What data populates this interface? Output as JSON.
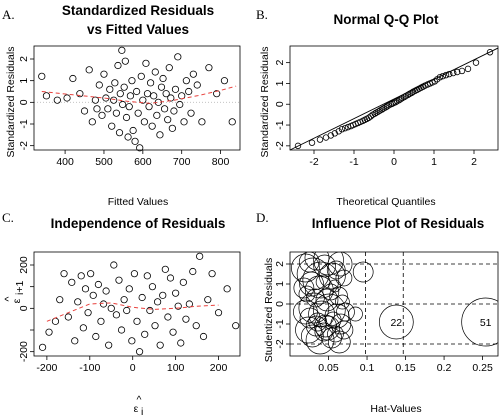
{
  "chart_data": [
    {
      "panel_label": "A.",
      "type": "scatter",
      "title": "Standardized Residuals",
      "subtitle": "vs Fitted Values",
      "xlabel": "Fitted Values",
      "ylabel": "Standardized Residuals",
      "xlim": [
        320,
        850
      ],
      "ylim": [
        -2.2,
        2.6
      ],
      "xticks": [
        400,
        500,
        600,
        700,
        800
      ],
      "yticks": [
        -2,
        -1,
        0,
        1,
        2
      ],
      "reference_lines": [
        {
          "axis": "y",
          "value": 0,
          "style": "dotted",
          "color": "#bbbbbb"
        }
      ],
      "smooth": {
        "color": "#e8403c",
        "style": "dashed",
        "x": [
          340,
          420,
          500,
          560,
          620,
          680,
          740,
          800,
          840
        ],
        "y": [
          0.5,
          0.35,
          0.2,
          0.05,
          -0.05,
          0.1,
          0.3,
          0.55,
          0.75
        ]
      },
      "points": {
        "x": [
          340,
          352,
          380,
          405,
          420,
          438,
          450,
          462,
          470,
          478,
          482,
          488,
          495,
          500,
          505,
          510,
          515,
          520,
          525,
          528,
          532,
          536,
          540,
          542,
          546,
          548,
          552,
          555,
          558,
          562,
          565,
          568,
          572,
          575,
          580,
          584,
          588,
          592,
          596,
          600,
          604,
          608,
          612,
          616,
          620,
          624,
          628,
          632,
          636,
          640,
          644,
          648,
          652,
          656,
          660,
          664,
          668,
          672,
          676,
          680,
          684,
          690,
          695,
          700,
          706,
          712,
          718,
          724,
          730,
          740,
          752,
          770,
          790,
          810,
          830
        ],
        "y": [
          1.2,
          0.3,
          0.1,
          0.2,
          1.1,
          0.4,
          -0.4,
          1.5,
          -0.9,
          0.1,
          -0.3,
          0.8,
          -0.6,
          1.3,
          0.2,
          -0.3,
          0.6,
          -1.1,
          0.1,
          0.9,
          -0.5,
          1.7,
          -1.4,
          0.4,
          2.4,
          -0.1,
          0.7,
          1.9,
          -0.7,
          -1.6,
          -0.2,
          0.3,
          1.0,
          -1.3,
          -1.8,
          0.5,
          -0.5,
          -2.1,
          1.2,
          0.1,
          -0.9,
          1.8,
          0.4,
          -0.2,
          0.9,
          -1.1,
          0.3,
          1.4,
          -0.6,
          0.0,
          -1.5,
          0.7,
          1.1,
          -0.3,
          0.4,
          -0.8,
          1.6,
          0.2,
          -1.2,
          -0.4,
          0.6,
          2.1,
          -0.1,
          0.3,
          -0.9,
          1.0,
          0.5,
          -0.5,
          1.3,
          0.8,
          -0.9,
          1.6,
          0.4,
          1.0,
          -0.9
        ]
      }
    },
    {
      "panel_label": "B.",
      "type": "scatter",
      "title": "Normal Q-Q Plot",
      "xlabel": "Theoretical Quantiles",
      "ylabel": "Standardized Residuals",
      "xlim": [
        -2.6,
        2.6
      ],
      "ylim": [
        -2.2,
        2.8
      ],
      "xticks": [
        -2,
        -1,
        0,
        1,
        2
      ],
      "yticks": [
        -2,
        -1,
        0,
        1,
        2
      ],
      "reference_line": {
        "x": [
          -2.6,
          2.6
        ],
        "y": [
          -2.2,
          2.7
        ],
        "color": "#000000"
      },
      "points": {
        "x": [
          -2.4,
          -2.05,
          -1.85,
          -1.7,
          -1.58,
          -1.48,
          -1.38,
          -1.3,
          -1.22,
          -1.15,
          -1.08,
          -1.02,
          -0.96,
          -0.9,
          -0.84,
          -0.78,
          -0.73,
          -0.68,
          -0.63,
          -0.58,
          -0.53,
          -0.48,
          -0.44,
          -0.39,
          -0.35,
          -0.3,
          -0.26,
          -0.21,
          -0.17,
          -0.13,
          -0.08,
          -0.04,
          0.0,
          0.04,
          0.08,
          0.13,
          0.17,
          0.21,
          0.26,
          0.3,
          0.35,
          0.39,
          0.44,
          0.48,
          0.53,
          0.58,
          0.63,
          0.68,
          0.73,
          0.78,
          0.84,
          0.9,
          0.96,
          1.02,
          1.08,
          1.15,
          1.22,
          1.3,
          1.38,
          1.48,
          1.58,
          1.7,
          1.85,
          2.05,
          2.4
        ],
        "y": [
          -2.0,
          -1.85,
          -1.7,
          -1.6,
          -1.5,
          -1.4,
          -1.3,
          -1.2,
          -1.15,
          -1.1,
          -1.05,
          -1.0,
          -0.95,
          -0.9,
          -0.85,
          -0.8,
          -0.75,
          -0.7,
          -0.65,
          -0.58,
          -0.5,
          -0.45,
          -0.4,
          -0.35,
          -0.3,
          -0.25,
          -0.2,
          -0.15,
          -0.1,
          -0.05,
          0.0,
          0.03,
          0.07,
          0.1,
          0.15,
          0.2,
          0.25,
          0.3,
          0.35,
          0.4,
          0.45,
          0.5,
          0.55,
          0.6,
          0.65,
          0.7,
          0.75,
          0.8,
          0.85,
          0.9,
          0.95,
          1.0,
          1.05,
          1.1,
          1.2,
          1.3,
          1.35,
          1.4,
          1.45,
          1.5,
          1.55,
          1.6,
          1.7,
          2.0,
          2.5
        ]
      }
    },
    {
      "panel_label": "C.",
      "type": "scatter",
      "title": "Independence of Residuals",
      "xlabel": "ε̂ i",
      "ylabel": "ε̂ i+1",
      "xlim": [
        -230,
        250
      ],
      "ylim": [
        -220,
        260
      ],
      "xticks": [
        -200,
        -100,
        0,
        100,
        200
      ],
      "yticks": [
        -200,
        0,
        200
      ],
      "yminor": [
        -100,
        100
      ],
      "smooth": {
        "color": "#e8403c",
        "style": "dashed",
        "x": [
          -200,
          -150,
          -100,
          -50,
          0,
          50,
          100,
          150,
          200
        ],
        "y": [
          -60,
          -20,
          20,
          25,
          5,
          -5,
          0,
          10,
          15
        ]
      },
      "points": {
        "x": [
          -210,
          -195,
          -180,
          -170,
          -160,
          -150,
          -142,
          -135,
          -128,
          -120,
          -115,
          -110,
          -104,
          -98,
          -92,
          -86,
          -80,
          -74,
          -68,
          -62,
          -56,
          -50,
          -44,
          -38,
          -32,
          -26,
          -20,
          -14,
          -8,
          -2,
          4,
          10,
          16,
          22,
          28,
          34,
          40,
          46,
          52,
          58,
          64,
          70,
          76,
          82,
          88,
          94,
          100,
          106,
          112,
          118,
          124,
          132,
          140,
          148,
          156,
          165,
          175,
          185,
          200,
          220,
          240
        ],
        "y": [
          -180,
          -110,
          -60,
          40,
          160,
          -40,
          120,
          -150,
          30,
          150,
          -90,
          90,
          -20,
          160,
          60,
          -130,
          110,
          -60,
          20,
          80,
          -170,
          0,
          200,
          -30,
          130,
          -100,
          40,
          -10,
          90,
          -150,
          160,
          -60,
          -200,
          50,
          -120,
          150,
          -10,
          100,
          -80,
          30,
          -170,
          60,
          180,
          -40,
          140,
          -110,
          70,
          10,
          -160,
          120,
          -50,
          20,
          170,
          -80,
          240,
          -130,
          40,
          160,
          -20,
          90,
          -80
        ]
      }
    },
    {
      "panel_label": "D.",
      "type": "scatter",
      "title": "Influence Plot of Residuals",
      "xlabel": "Hat-Values",
      "ylabel": "Studentized Residuals",
      "xlim": [
        0.0,
        0.27
      ],
      "ylim": [
        -2.6,
        2.6
      ],
      "xticks": [
        0.05,
        0.1,
        0.15,
        0.2,
        0.25
      ],
      "yticks": [
        -2,
        -1,
        0,
        1,
        2
      ],
      "reference_lines": [
        {
          "axis": "x",
          "value": 0.098,
          "style": "dashed"
        },
        {
          "axis": "x",
          "value": 0.147,
          "style": "dashed"
        },
        {
          "axis": "y",
          "value": -2,
          "style": "dashed"
        },
        {
          "axis": "y",
          "value": 0,
          "style": "dashed"
        },
        {
          "axis": "y",
          "value": 2,
          "style": "dashed"
        }
      ],
      "annotations": [
        {
          "text": "22",
          "x": 0.138,
          "y": -0.9
        },
        {
          "text": "51",
          "x": 0.254,
          "y": -0.9
        }
      ],
      "bubbles": {
        "x": [
          0.02,
          0.025,
          0.03,
          0.035,
          0.04,
          0.045,
          0.05,
          0.055,
          0.06,
          0.065,
          0.07,
          0.018,
          0.022,
          0.028,
          0.033,
          0.038,
          0.043,
          0.048,
          0.053,
          0.058,
          0.063,
          0.068,
          0.02,
          0.026,
          0.031,
          0.036,
          0.041,
          0.046,
          0.051,
          0.056,
          0.061,
          0.066,
          0.072,
          0.024,
          0.029,
          0.034,
          0.039,
          0.044,
          0.049,
          0.054,
          0.059,
          0.064,
          0.07,
          0.085,
          0.095,
          0.138,
          0.254
        ],
        "y": [
          1.8,
          2.1,
          1.5,
          2.3,
          1.2,
          1.9,
          2.2,
          1.4,
          1.7,
          2.0,
          1.3,
          0.8,
          0.5,
          1.0,
          0.3,
          0.7,
          1.1,
          0.2,
          0.6,
          0.9,
          0.4,
          0.1,
          -0.4,
          -0.7,
          -0.2,
          -0.9,
          -0.5,
          -1.1,
          -0.3,
          -0.8,
          -0.6,
          -1.0,
          -0.4,
          -1.3,
          -1.6,
          -1.1,
          -1.8,
          -1.4,
          -1.2,
          -1.7,
          -1.5,
          -1.9,
          -1.3,
          -0.5,
          1.6,
          -0.9,
          -0.9
        ],
        "r": [
          14,
          10,
          16,
          12,
          18,
          11,
          15,
          13,
          9,
          12,
          8,
          10,
          8,
          12,
          9,
          14,
          7,
          11,
          8,
          6,
          9,
          7,
          12,
          10,
          15,
          9,
          13,
          11,
          16,
          8,
          12,
          10,
          9,
          13,
          11,
          10,
          14,
          9,
          12,
          10,
          8,
          11,
          9,
          7,
          10,
          17,
          24
        ]
      }
    }
  ]
}
